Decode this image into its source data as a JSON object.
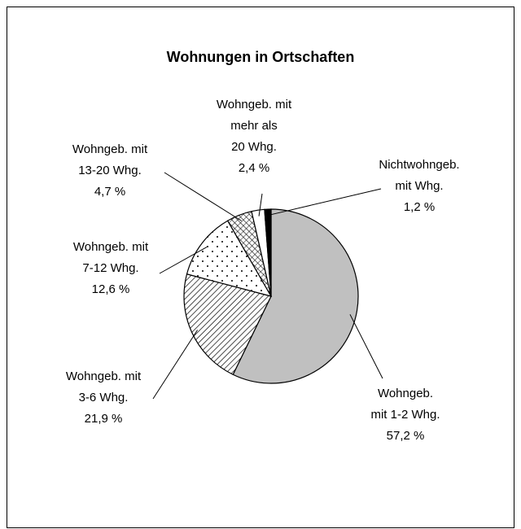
{
  "chart_data": {
    "type": "pie",
    "title": "Wohnungen in Ortschaften",
    "categories": [
      "Wohngeb.\nmit 1-2 Whg.",
      "Wohngeb. mit\n3-6 Whg.",
      "Wohngeb. mit\n7-12 Whg.",
      "Wohngeb. mit\n13-20 Whg.",
      "Wohngeb. mit\nmehr als\n20 Whg.",
      "Nichtwohngeb.\nmit Whg."
    ],
    "values": [
      57.2,
      21.9,
      12.6,
      4.7,
      2.4,
      1.2
    ],
    "value_labels": [
      "57,2 %",
      "21,9 %",
      "12,6 %",
      "4,7 %",
      "2,4 %",
      "1,2 %"
    ],
    "colors": [
      "#c0c0c0",
      "#ffffff",
      "#ffffff",
      "#ffffff",
      "#ffffff",
      "#000000"
    ],
    "patterns": [
      "solid",
      "diagonal",
      "dots",
      "crosshatch",
      "solid",
      "solid"
    ]
  }
}
